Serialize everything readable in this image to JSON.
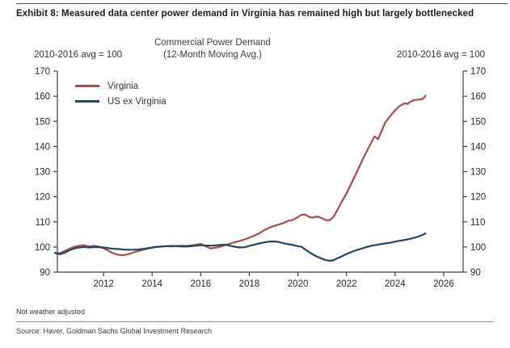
{
  "header": {
    "exhibit_title": "Exhibit 8: Measured data center power demand in Virginia has remained high but largely bottlenecked"
  },
  "footer": {
    "footnote": "Not weather adjusted",
    "source": "Source:  Haver, Goldman Sachs Global Investment Research"
  },
  "chart_data": {
    "type": "line",
    "title": "Commercial Power Demand",
    "subtitle": "(12-Month Moving Avg.)",
    "left_axis_note": "2010-2016 avg = 100",
    "right_axis_note": "2010-2016 avg = 100",
    "xlim": [
      2010.1,
      2026.8
    ],
    "ylim": [
      90,
      170
    ],
    "xticks": [
      2012,
      2014,
      2016,
      2018,
      2020,
      2022,
      2024,
      2026
    ],
    "yticks": [
      90,
      100,
      110,
      120,
      130,
      140,
      150,
      160,
      170
    ],
    "grid": false,
    "legend_position": "top-left-inside",
    "axis_color": "#3d3d3d",
    "series": [
      {
        "name": "Virginia",
        "color": "#AE4A49",
        "points": [
          [
            2010.0,
            97.7
          ],
          [
            2010.2,
            97.5
          ],
          [
            2010.4,
            98.4
          ],
          [
            2010.6,
            99.3
          ],
          [
            2010.8,
            100.1
          ],
          [
            2011.0,
            100.5
          ],
          [
            2011.2,
            100.7
          ],
          [
            2011.4,
            100.2
          ],
          [
            2011.6,
            100.5
          ],
          [
            2011.8,
            100.2
          ],
          [
            2012.0,
            99.5
          ],
          [
            2012.2,
            98.5
          ],
          [
            2012.4,
            97.5
          ],
          [
            2012.6,
            96.9
          ],
          [
            2012.8,
            96.7
          ],
          [
            2013.0,
            97.1
          ],
          [
            2013.2,
            97.7
          ],
          [
            2013.4,
            98.3
          ],
          [
            2013.6,
            98.8
          ],
          [
            2013.8,
            99.3
          ],
          [
            2014.0,
            99.7
          ],
          [
            2014.2,
            100.0
          ],
          [
            2014.4,
            100.2
          ],
          [
            2014.6,
            100.3
          ],
          [
            2014.8,
            100.2
          ],
          [
            2015.0,
            100.4
          ],
          [
            2015.2,
            100.5
          ],
          [
            2015.4,
            100.4
          ],
          [
            2015.6,
            100.6
          ],
          [
            2015.8,
            100.9
          ],
          [
            2016.0,
            101.2
          ],
          [
            2016.2,
            100.3
          ],
          [
            2016.4,
            99.4
          ],
          [
            2016.6,
            99.7
          ],
          [
            2016.8,
            100.1
          ],
          [
            2017.0,
            100.7
          ],
          [
            2017.2,
            101.3
          ],
          [
            2017.4,
            101.9
          ],
          [
            2017.6,
            102.4
          ],
          [
            2017.8,
            103.0
          ],
          [
            2018.0,
            103.7
          ],
          [
            2018.2,
            104.5
          ],
          [
            2018.4,
            105.4
          ],
          [
            2018.6,
            106.6
          ],
          [
            2018.8,
            107.6
          ],
          [
            2019.0,
            108.3
          ],
          [
            2019.2,
            108.9
          ],
          [
            2019.4,
            109.5
          ],
          [
            2019.6,
            110.4
          ],
          [
            2019.8,
            110.8
          ],
          [
            2020.0,
            111.9
          ],
          [
            2020.15,
            112.8
          ],
          [
            2020.3,
            112.9
          ],
          [
            2020.45,
            112.0
          ],
          [
            2020.6,
            111.7
          ],
          [
            2020.8,
            112.1
          ],
          [
            2021.0,
            111.4
          ],
          [
            2021.15,
            110.7
          ],
          [
            2021.3,
            110.6
          ],
          [
            2021.45,
            111.8
          ],
          [
            2021.6,
            114.3
          ],
          [
            2021.8,
            117.9
          ],
          [
            2022.0,
            121.3
          ],
          [
            2022.2,
            125.3
          ],
          [
            2022.4,
            129.3
          ],
          [
            2022.6,
            133.4
          ],
          [
            2022.8,
            137.5
          ],
          [
            2023.0,
            141.2
          ],
          [
            2023.15,
            144.0
          ],
          [
            2023.3,
            142.9
          ],
          [
            2023.45,
            146.3
          ],
          [
            2023.6,
            149.6
          ],
          [
            2023.8,
            152.1
          ],
          [
            2024.0,
            154.4
          ],
          [
            2024.2,
            156.2
          ],
          [
            2024.4,
            157.2
          ],
          [
            2024.5,
            156.9
          ],
          [
            2024.65,
            157.9
          ],
          [
            2024.8,
            158.5
          ],
          [
            2025.0,
            158.7
          ],
          [
            2025.15,
            158.9
          ],
          [
            2025.25,
            160.2
          ]
        ]
      },
      {
        "name": "US ex Virginia",
        "color": "#1C4A63",
        "points": [
          [
            2010.0,
            97.6
          ],
          [
            2010.2,
            97.1
          ],
          [
            2010.4,
            97.7
          ],
          [
            2010.6,
            98.7
          ],
          [
            2010.8,
            99.4
          ],
          [
            2011.0,
            99.8
          ],
          [
            2011.2,
            100.0
          ],
          [
            2011.4,
            99.8
          ],
          [
            2011.6,
            99.9
          ],
          [
            2011.8,
            99.9
          ],
          [
            2012.0,
            99.8
          ],
          [
            2012.2,
            99.5
          ],
          [
            2012.4,
            99.3
          ],
          [
            2012.6,
            99.2
          ],
          [
            2012.8,
            99.0
          ],
          [
            2013.0,
            98.9
          ],
          [
            2013.2,
            98.9
          ],
          [
            2013.4,
            99.0
          ],
          [
            2013.6,
            99.2
          ],
          [
            2013.8,
            99.5
          ],
          [
            2014.0,
            99.8
          ],
          [
            2014.2,
            100.1
          ],
          [
            2014.4,
            100.2
          ],
          [
            2014.6,
            100.3
          ],
          [
            2014.8,
            100.4
          ],
          [
            2015.0,
            100.3
          ],
          [
            2015.2,
            100.2
          ],
          [
            2015.4,
            100.2
          ],
          [
            2015.6,
            100.3
          ],
          [
            2015.8,
            100.5
          ],
          [
            2016.0,
            100.7
          ],
          [
            2016.2,
            100.6
          ],
          [
            2016.4,
            100.5
          ],
          [
            2016.6,
            100.6
          ],
          [
            2016.8,
            100.8
          ],
          [
            2017.0,
            100.9
          ],
          [
            2017.2,
            100.5
          ],
          [
            2017.4,
            100.1
          ],
          [
            2017.6,
            99.8
          ],
          [
            2017.8,
            99.9
          ],
          [
            2018.0,
            100.4
          ],
          [
            2018.2,
            100.9
          ],
          [
            2018.4,
            101.4
          ],
          [
            2018.6,
            101.8
          ],
          [
            2018.8,
            102.1
          ],
          [
            2019.0,
            102.2
          ],
          [
            2019.2,
            102.0
          ],
          [
            2019.4,
            101.5
          ],
          [
            2019.6,
            101.1
          ],
          [
            2019.8,
            100.8
          ],
          [
            2020.0,
            100.3
          ],
          [
            2020.15,
            100.1
          ],
          [
            2020.3,
            99.0
          ],
          [
            2020.5,
            97.7
          ],
          [
            2020.7,
            96.6
          ],
          [
            2020.9,
            95.7
          ],
          [
            2021.1,
            94.9
          ],
          [
            2021.3,
            94.5
          ],
          [
            2021.45,
            94.7
          ],
          [
            2021.6,
            95.4
          ],
          [
            2021.8,
            96.2
          ],
          [
            2022.0,
            97.2
          ],
          [
            2022.2,
            98.0
          ],
          [
            2022.4,
            98.7
          ],
          [
            2022.6,
            99.3
          ],
          [
            2022.8,
            99.9
          ],
          [
            2023.0,
            100.4
          ],
          [
            2023.2,
            100.8
          ],
          [
            2023.4,
            101.1
          ],
          [
            2023.6,
            101.4
          ],
          [
            2023.8,
            101.7
          ],
          [
            2024.0,
            102.1
          ],
          [
            2024.2,
            102.5
          ],
          [
            2024.4,
            102.8
          ],
          [
            2024.6,
            103.2
          ],
          [
            2024.8,
            103.7
          ],
          [
            2025.0,
            104.3
          ],
          [
            2025.15,
            104.9
          ],
          [
            2025.25,
            105.4
          ]
        ]
      }
    ]
  }
}
